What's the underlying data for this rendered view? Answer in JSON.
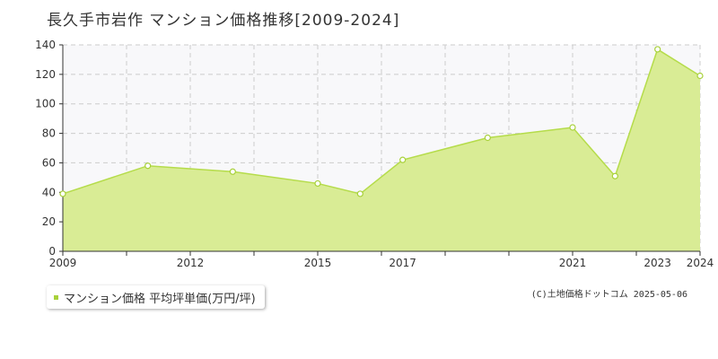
{
  "chart_data": {
    "type": "area",
    "title": "長久手市岩作 マンション価格推移[2009-2024]",
    "x": [
      2009,
      2011,
      2013,
      2015,
      2016,
      2017,
      2019,
      2021,
      2022,
      2023,
      2024
    ],
    "series": [
      {
        "name": "マンション価格 平均坪単価(万円/坪)",
        "values": [
          39,
          58,
          54,
          46,
          39,
          62,
          77,
          84,
          51,
          137,
          119
        ]
      }
    ],
    "xlim": [
      2009,
      2024
    ],
    "ylim": [
      0,
      140
    ],
    "x_ticks": [
      "2009",
      "2012",
      "2015",
      "2017",
      "2021",
      "2023",
      "2024"
    ],
    "y_ticks": [
      "0",
      "20",
      "40",
      "60",
      "80",
      "100",
      "120",
      "140"
    ],
    "grid": true,
    "legend_position": "bottom-left",
    "colors": {
      "fill": "#d9ec95",
      "line": "#b5dc4a",
      "marker": "#a8d13a",
      "grid": "#cccccc",
      "plot_background": "#f8f8fa"
    }
  },
  "credit": "(C)土地価格ドットコム 2025-05-06"
}
